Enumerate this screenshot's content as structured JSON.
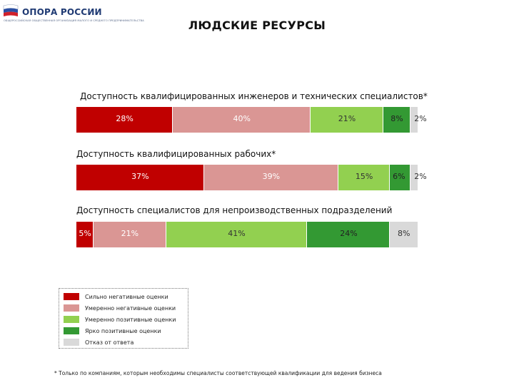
{
  "header": {
    "logo_text": "ОПОРА РОССИИ",
    "logo_tagline": "ОБЩЕРОССИЙСКАЯ ОБЩЕСТВЕННАЯ ОРГАНИЗАЦИЯ МАЛОГО И СРЕДНЕГО ПРЕДПРИНИМАТЕЛЬСТВА",
    "title": "ЛЮДСКИЕ РЕСУРСЫ"
  },
  "colors": {
    "strong_negative": "#c00000",
    "moderate_negative": "#da9694",
    "moderate_positive": "#92d050",
    "strong_positive": "#339933",
    "no_answer": "#d9d9d9"
  },
  "chart_data": {
    "type": "bar",
    "orientation": "horizontal-stacked-100",
    "series_names": [
      "Сильно негативные оценки",
      "Умеренно негативные оценки",
      "Умеренно позитивные оценки",
      "Ярко позитивные оценки",
      "Отказ от ответа"
    ],
    "charts": [
      {
        "title": "Доступность квалифицированных инженеров и технических специалистов*",
        "values": [
          28,
          40,
          21,
          8,
          2
        ],
        "labels": [
          "28%",
          "40%",
          "21%",
          "8%",
          "2%"
        ]
      },
      {
        "title": "Доступность квалифицированных рабочих*",
        "values": [
          37,
          39,
          15,
          6,
          2
        ],
        "labels": [
          "37%",
          "39%",
          "15%",
          "6%",
          "2%"
        ]
      },
      {
        "title": "Доступность специалистов для непроизводственных подразделений",
        "values": [
          5,
          21,
          41,
          24,
          8
        ],
        "labels": [
          "5%",
          "21%",
          "41%",
          "24%",
          "8%"
        ]
      }
    ]
  },
  "legend": {
    "items": [
      {
        "label": "Сильно негативные оценки",
        "color": "#c00000"
      },
      {
        "label": "Умеренно негативные оценки",
        "color": "#da9694"
      },
      {
        "label": "Умеренно позитивные оценки",
        "color": "#92d050"
      },
      {
        "label": "Ярко позитивные оценки",
        "color": "#339933"
      },
      {
        "label": "Отказ от ответа",
        "color": "#d9d9d9"
      }
    ]
  },
  "footnote": "* Только по компаниям, которым необходимы специалисты соответствующей квалификации для ведения бизнеса"
}
